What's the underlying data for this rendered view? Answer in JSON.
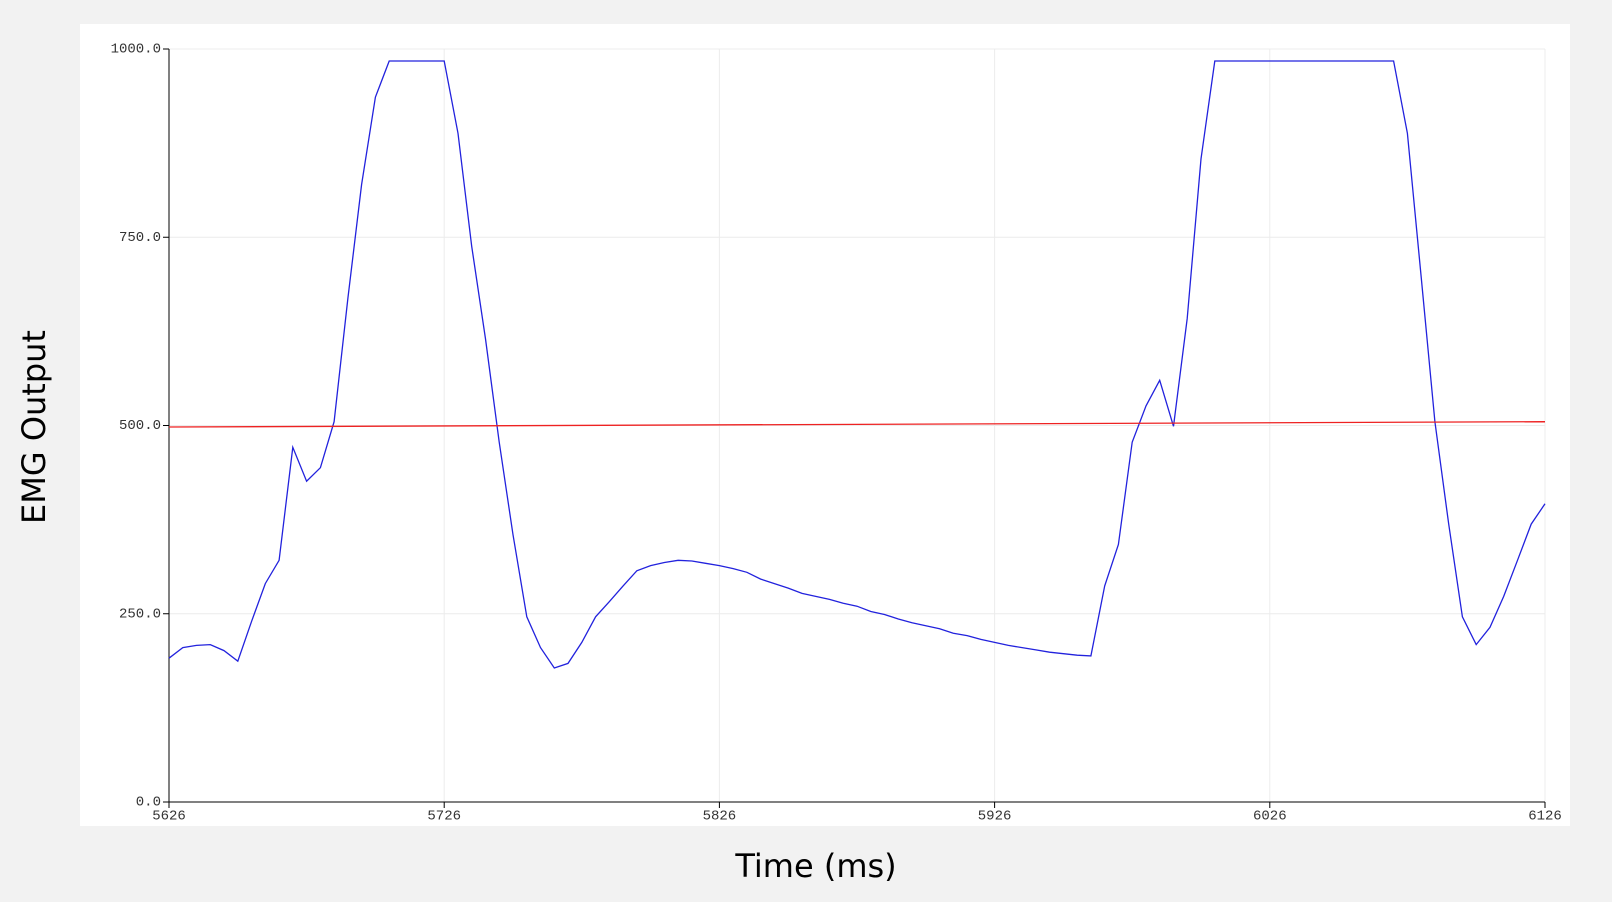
{
  "chart_data": {
    "type": "line",
    "x_label": "Time (ms)",
    "y_label": "EMG Output",
    "x": [
      5626,
      5631,
      5636,
      5641,
      5646,
      5651,
      5656,
      5661,
      5666,
      5671,
      5676,
      5681,
      5686,
      5691,
      5696,
      5701,
      5706,
      5711,
      5716,
      5721,
      5726,
      5731,
      5736,
      5741,
      5746,
      5751,
      5756,
      5761,
      5766,
      5771,
      5776,
      5781,
      5786,
      5791,
      5796,
      5801,
      5806,
      5811,
      5816,
      5821,
      5826,
      5831,
      5836,
      5841,
      5846,
      5851,
      5856,
      5861,
      5866,
      5871,
      5876,
      5881,
      5886,
      5891,
      5896,
      5901,
      5906,
      5911,
      5916,
      5921,
      5926,
      5931,
      5936,
      5941,
      5946,
      5951,
      5956,
      5961,
      5966,
      5971,
      5976,
      5981,
      5986,
      5991,
      5996,
      6001,
      6006,
      6011,
      6016,
      6021,
      6026,
      6031,
      6036,
      6041,
      6046,
      6051,
      6056,
      6061,
      6066,
      6071,
      6076,
      6081,
      6086,
      6091,
      6096,
      6101,
      6106,
      6111,
      6116,
      6121,
      6126
    ],
    "series": [
      {
        "color": "#2222dd",
        "values": [
          191,
          205,
          208,
          209,
          201,
          187,
          240,
          290,
          321,
          471,
          426,
          444,
          505,
          669,
          820,
          936,
          984,
          984,
          984,
          984,
          984,
          888,
          738,
          615,
          478,
          355,
          246,
          205,
          178,
          184,
          212,
          246,
          266,
          287,
          307,
          314,
          318,
          321,
          320,
          317,
          314,
          310,
          305,
          296,
          290,
          284,
          277,
          273,
          269,
          264,
          260,
          253,
          249,
          243,
          238,
          234,
          230,
          224,
          221,
          216,
          212,
          208,
          205,
          202,
          199,
          197,
          195,
          194,
          287,
          342,
          478,
          526,
          560,
          499,
          642,
          854,
          984,
          984,
          984,
          984,
          984,
          984,
          984,
          984,
          984,
          984,
          984,
          984,
          984,
          984,
          888,
          697,
          505,
          369,
          246,
          209,
          232,
          273,
          321,
          369,
          396
        ]
      },
      {
        "color": "#ee2222",
        "x": [
          5626,
          6126
        ],
        "values": [
          498,
          505
        ]
      }
    ],
    "xlim": [
      5626,
      6126
    ],
    "ylim": [
      0,
      1000
    ],
    "xticks": [
      5626,
      5726,
      5826,
      5926,
      6026,
      6126
    ],
    "yticks": [
      {
        "value": 0,
        "label": "0.0"
      },
      {
        "value": 250,
        "label": "250.0"
      },
      {
        "value": 500,
        "label": "500.0"
      },
      {
        "value": 750,
        "label": "750.0"
      },
      {
        "value": 1000,
        "label": "1000.0"
      }
    ],
    "grid": true
  }
}
